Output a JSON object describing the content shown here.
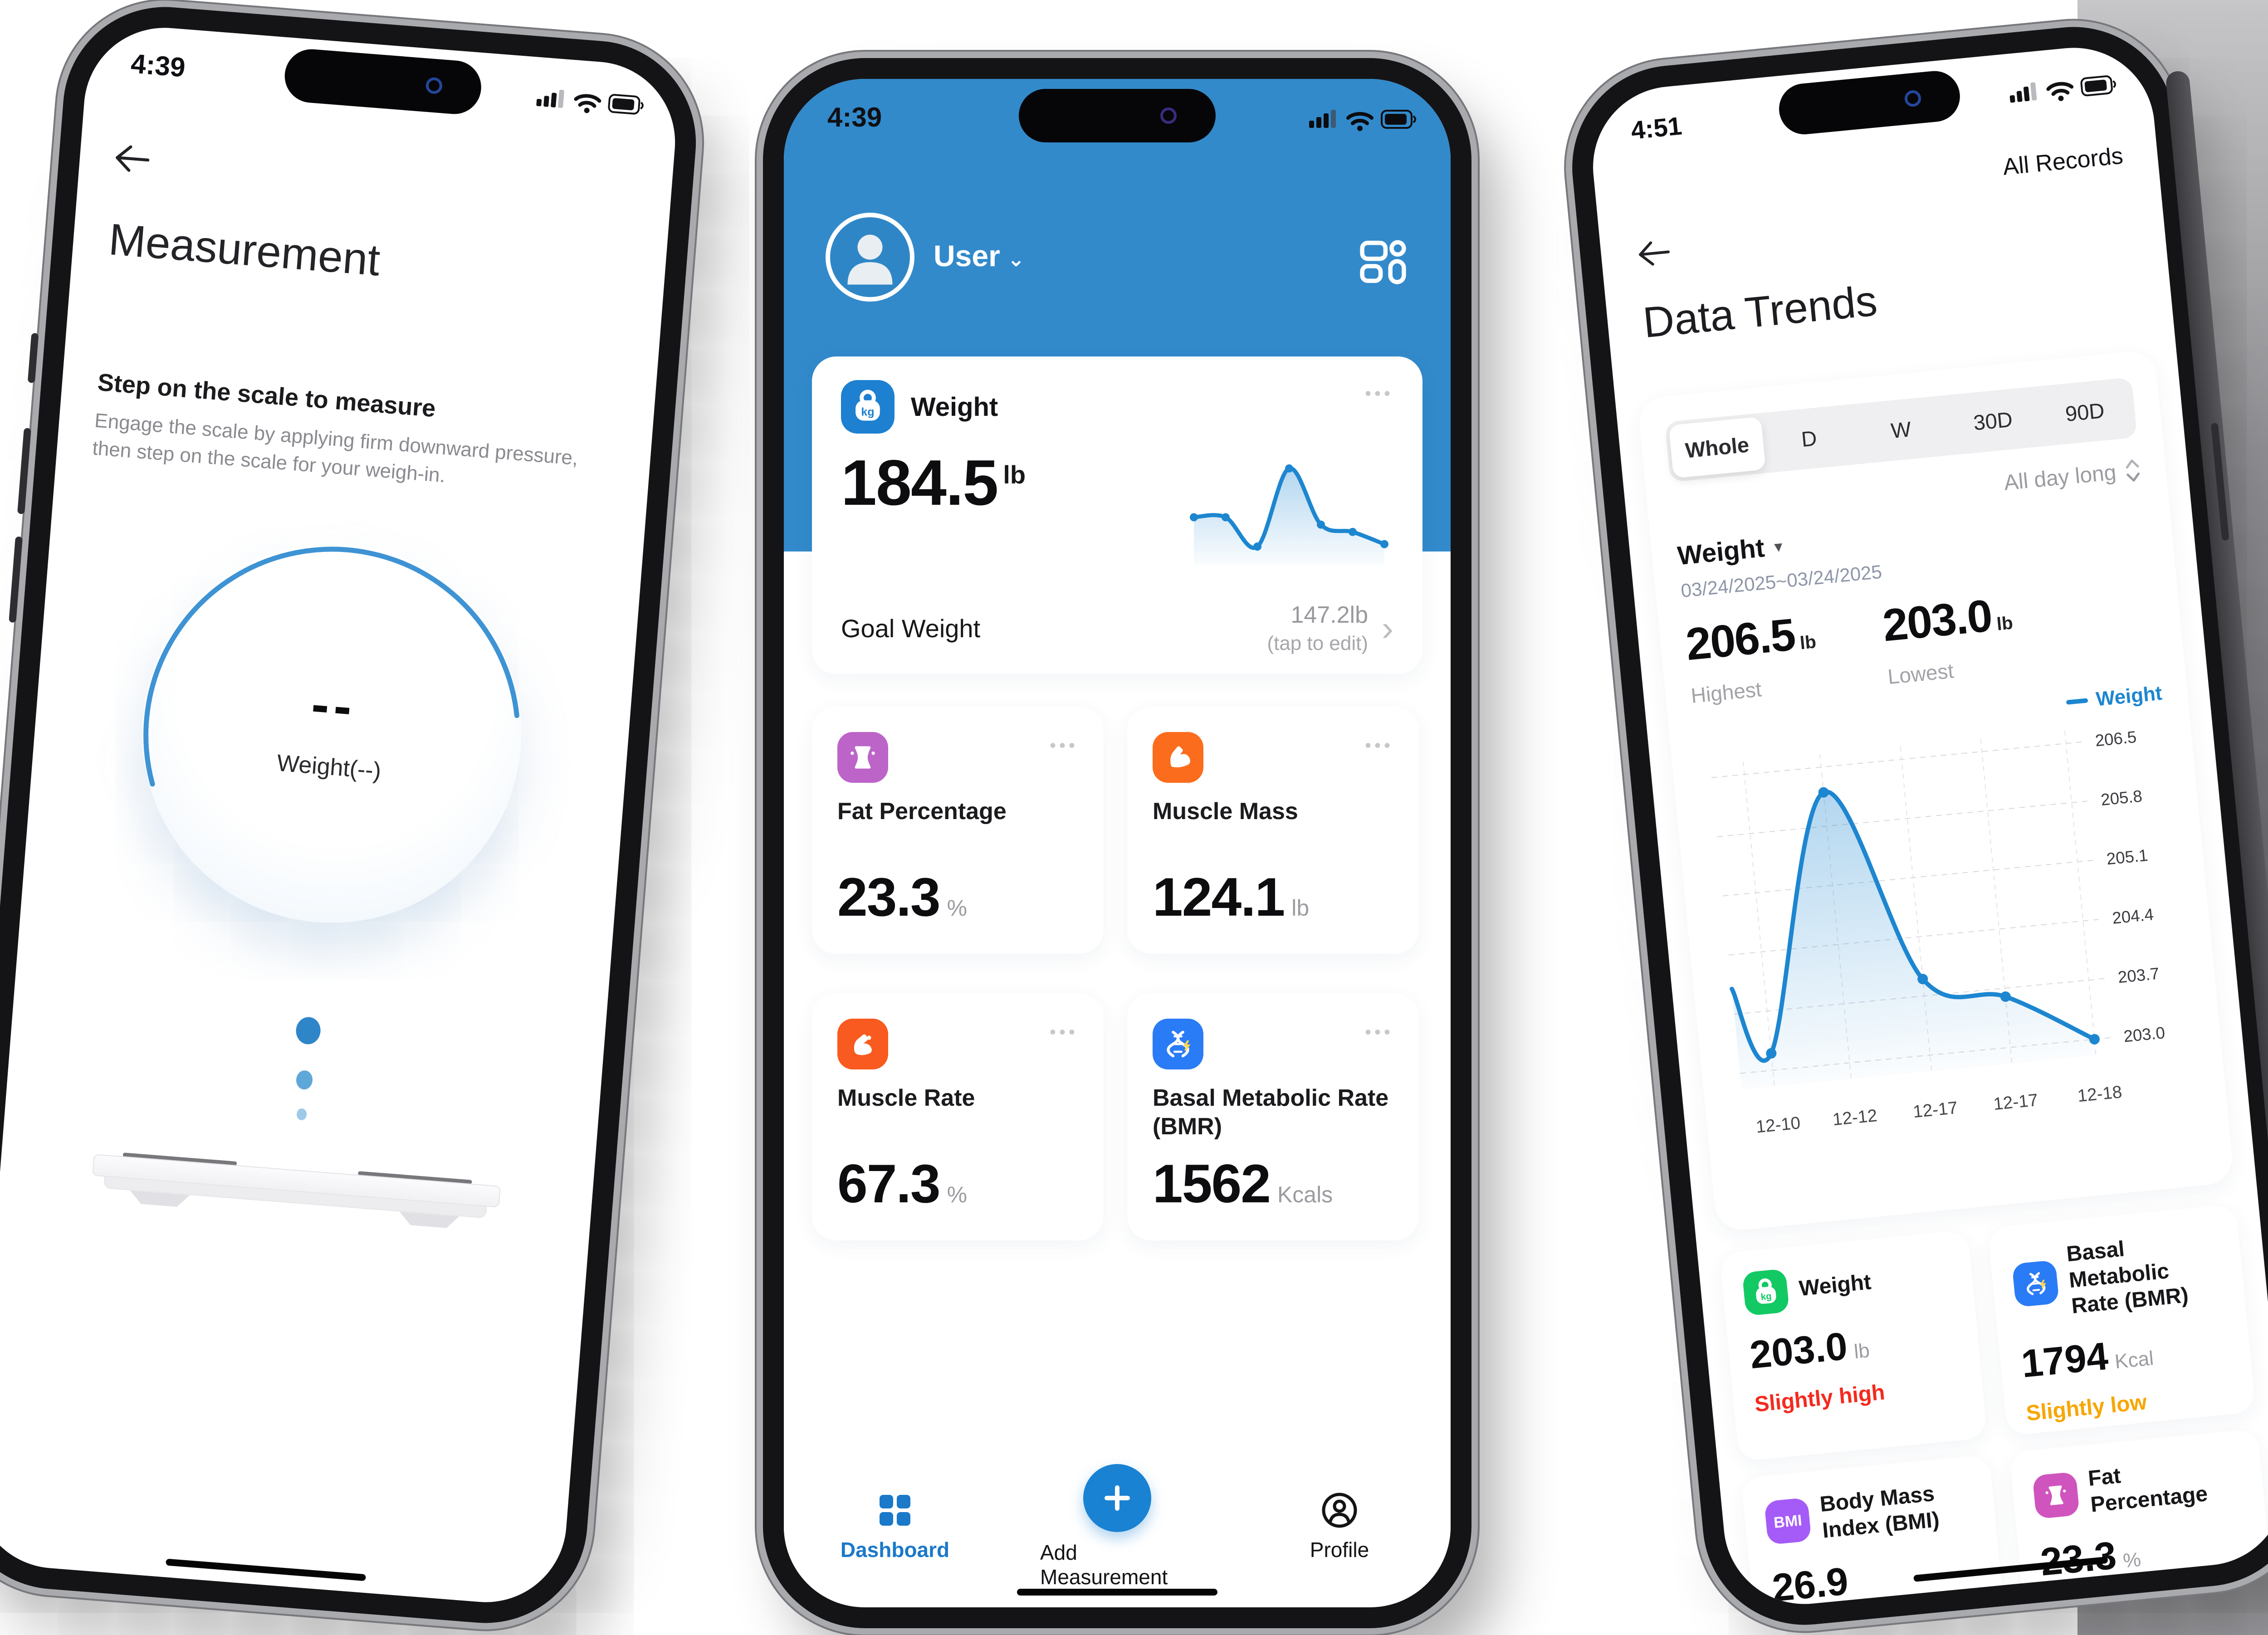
{
  "ui": {
    "menu_dots": "•••",
    "chevron_right": "›",
    "dropdown_caret": "▾",
    "user_caret": "⌄",
    "kg_label": "kg",
    "bmi_label": "BMI"
  },
  "colors": {
    "header_blue": "#328acb",
    "chart_blue": "#1d86d0",
    "nav_blue": "#1b79c9",
    "fat_purple": "#bc64c8",
    "muscle_mass_orange": "#fb6d1d",
    "muscle_rate_orange": "#f85a1f",
    "bmr_blue": "#2a7bf6",
    "weight_green": "#12c963",
    "bmi_purple": "#a55bf8",
    "fat_pink": "#d054be",
    "status_red": "#f42a1d",
    "status_orange": "#f7a600"
  },
  "left_phone": {
    "status_time": "4:39",
    "title": "Measurement",
    "instruction_title": "Step on the scale to measure",
    "instruction_body": "Engage the scale by applying firm downward pressure, then step on the scale for your weigh-in.",
    "reading_value": "--",
    "reading_label": "Weight(--)"
  },
  "middle_phone": {
    "status_time": "4:39",
    "user_label": "User",
    "weight_card": {
      "title": "Weight",
      "value": "184.5",
      "unit": "lb",
      "goal_label": "Goal Weight",
      "goal_value": "147.2lb",
      "goal_hint": "(tap to edit)"
    },
    "metric_cards": [
      {
        "title": "Fat Percentage",
        "value": "23.3",
        "unit": "%"
      },
      {
        "title": "Muscle Mass",
        "value": "124.1",
        "unit": "lb"
      },
      {
        "title": "Muscle Rate",
        "value": "67.3",
        "unit": "%"
      },
      {
        "title": "Basal Metabolic Rate (BMR)",
        "value": "1562",
        "unit": "Kcals"
      }
    ],
    "nav": {
      "dashboard": "Dashboard",
      "add": "Add Measurement",
      "profile": "Profile"
    }
  },
  "right_phone": {
    "status_time": "4:51",
    "all_records": "All Records",
    "title": "Data Trends",
    "tabs": [
      "Whole",
      "D",
      "W",
      "30D",
      "90D"
    ],
    "active_tab": "Whole",
    "period": "All day long",
    "metric": "Weight",
    "date_range": "03/24/2025~03/24/2025",
    "highest_value": "206.5",
    "highest_unit": "lb",
    "highest_label": "Highest",
    "lowest_value": "203.0",
    "lowest_unit": "lb",
    "lowest_label": "Lowest",
    "summary_cards": [
      {
        "title": "Weight",
        "value": "203.0",
        "unit": "lb",
        "status": "Slightly high",
        "status_color": "#f42a1d"
      },
      {
        "title": "Basal Metabolic Rate (BMR)",
        "value": "1794",
        "unit": "Kcal",
        "status": "Slightly low",
        "status_color": "#f7a600"
      },
      {
        "title": "Body Mass Index (BMI)",
        "value": "26.9",
        "unit": "",
        "status": "",
        "status_color": ""
      },
      {
        "title": "Fat Percentage",
        "value": "23.3",
        "unit": "%",
        "status": "",
        "status_color": ""
      }
    ]
  },
  "chart_data": [
    {
      "type": "line",
      "title": "Weight sparkline (dashboard weight card)",
      "x": [
        "1",
        "2",
        "3",
        "4",
        "5",
        "6",
        "7"
      ],
      "y": [
        204.1,
        204.1,
        202.9,
        206.1,
        203.8,
        203.5,
        203.0
      ],
      "color": "#1d86d0",
      "area": true,
      "legend_position": "none"
    },
    {
      "type": "line",
      "title": "Weight trend (Data Trends screen)",
      "legend": "Weight",
      "color": "#1d86d0",
      "grid": "dashed",
      "legend_position": "top-right",
      "ylim": [
        202.85,
        206.65
      ],
      "y_ticks": [
        206.5,
        205.8,
        205.1,
        204.4,
        203.7,
        203.0
      ],
      "edge_start_y": 204.0,
      "series": [
        {
          "name": "Weight",
          "x_labels": [
            "12-10",
            "12-12",
            "12-17",
            "12-17",
            "12-18"
          ],
          "x_fractions": [
            0.09,
            0.3,
            0.52,
            0.74,
            0.97
          ],
          "y": [
            203.2,
            206.2,
            203.9,
            203.6,
            203.0
          ]
        }
      ]
    }
  ]
}
